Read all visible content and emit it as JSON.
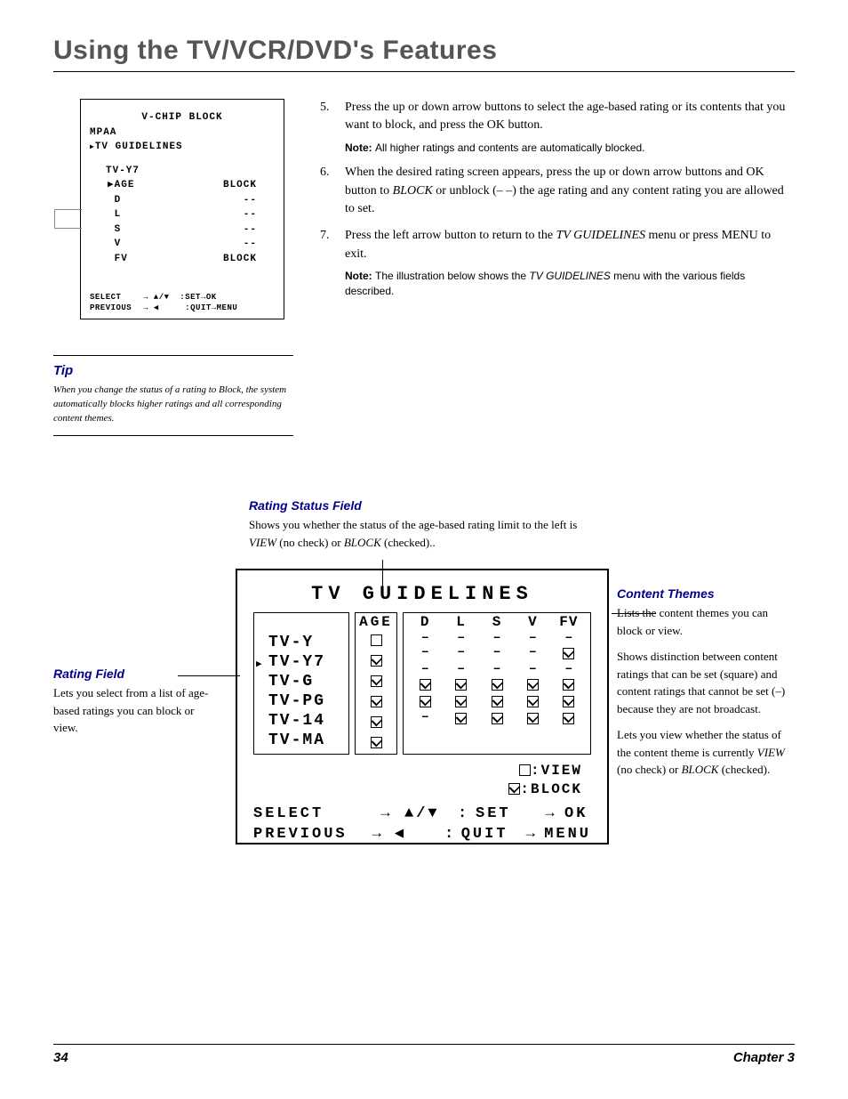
{
  "page_title": "Using the TV/VCR/DVD's Features",
  "osd_small": {
    "title": "V-CHIP BLOCK",
    "line1": "MPAA",
    "line2": "TV GUIDELINES",
    "sub": "TV-Y7",
    "rows": [
      {
        "label": "AGE",
        "value": "BLOCK",
        "selected": true
      },
      {
        "label": "D",
        "value": "--"
      },
      {
        "label": "L",
        "value": "--"
      },
      {
        "label": "S",
        "value": "--"
      },
      {
        "label": "V",
        "value": "--"
      },
      {
        "label": "FV",
        "value": "BLOCK"
      }
    ],
    "footer_select": "SELECT",
    "footer_prev": "PREVIOUS",
    "footer_set": "SET",
    "footer_ok": "OK",
    "footer_quit": "QUIT",
    "footer_menu": "MENU"
  },
  "tip": {
    "heading": "Tip",
    "text": "When you change the status of a rating to Block, the system automatically blocks higher ratings and all corresponding content themes."
  },
  "steps": [
    {
      "num": "5.",
      "text_parts": [
        "Press the up or down arrow buttons to select the age-based rating or its contents that you want to block, and press the OK button."
      ],
      "note": "All higher ratings and contents are automatically blocked."
    },
    {
      "num": "6.",
      "text_parts": [
        "When the desired rating screen appears, press the up or down arrow buttons and OK button to ",
        "BLOCK",
        " or unblock (– –) the age rating and any content rating you are allowed to set."
      ]
    },
    {
      "num": "7.",
      "text_parts": [
        "Press the left arrow button to return to the ",
        "TV GUIDELINES",
        " menu or press MENU to exit."
      ],
      "note_parts": [
        "The illustration below shows the ",
        "TV GUIDELINES",
        " menu with the various fields described."
      ]
    }
  ],
  "rating_status": {
    "heading": "Rating Status Field",
    "desc_parts": [
      "Shows you whether the status of the age-based rating limit to the left is ",
      "VIEW",
      " (no check) or ",
      "BLOCK",
      " (checked).."
    ]
  },
  "rating_field": {
    "heading": "Rating Field",
    "desc": "Lets you select from a list of age-based ratings you can block or view."
  },
  "content_themes": {
    "heading": "Content Themes",
    "p1": "Lists the content themes you can block or view.",
    "p2": "Shows distinction between content ratings that can be set (square) and content ratings that cannot be set (–) because they are not broadcast.",
    "p3_parts": [
      "Lets you view whether the status of the content theme is currently ",
      "VIEW",
      " (no check) or ",
      "BLOCK",
      " (checked)."
    ]
  },
  "big_osd": {
    "title": "TV GUIDELINES",
    "age_header": "AGE",
    "content_headers": [
      "D",
      "L",
      "S",
      "V",
      "FV"
    ],
    "ratings": [
      "TV-Y",
      "TV-Y7",
      "TV-G",
      "TV-PG",
      "TV-14",
      "TV-MA"
    ],
    "selected_index": 1,
    "age_states": [
      "empty",
      "check",
      "check",
      "check",
      "check",
      "check"
    ],
    "content_grid": [
      [
        "dash",
        "dash",
        "dash",
        "dash",
        "dash"
      ],
      [
        "dash",
        "dash",
        "dash",
        "dash",
        "check"
      ],
      [
        "dash",
        "dash",
        "dash",
        "dash",
        "dash"
      ],
      [
        "check",
        "check",
        "check",
        "check",
        "check"
      ],
      [
        "check",
        "check",
        "check",
        "check",
        "check"
      ],
      [
        "dash",
        "check",
        "check",
        "check",
        "check"
      ]
    ],
    "legend_view": ":VIEW",
    "legend_block": ":BLOCK",
    "footer": {
      "select": "SELECT",
      "previous": "PREVIOUS",
      "set": "SET",
      "ok": "OK",
      "quit": "QUIT",
      "menu": "MENU"
    }
  },
  "footer_page": "34",
  "footer_chapter": "Chapter 3",
  "colors": {
    "heading_gray": "#555555",
    "accent_blue": "#000088",
    "text": "#000000",
    "background": "#ffffff"
  }
}
